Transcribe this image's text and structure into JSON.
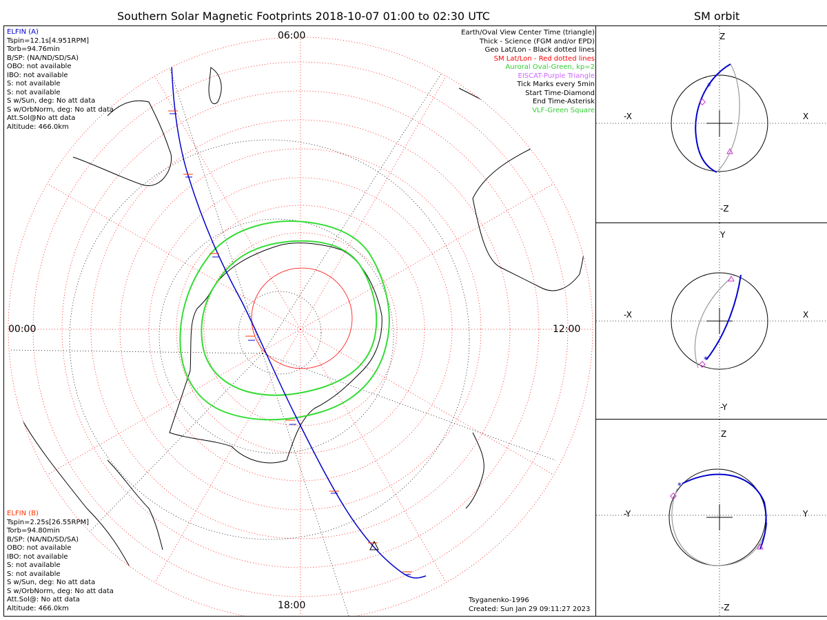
{
  "main": {
    "title": "Southern Solar Magnetic Footprints 2018-10-07 01:00 to 02:30 UTC",
    "clock_labels": {
      "top": "06:00",
      "left": "00:00",
      "right": "12:00",
      "bottom": "18:00"
    }
  },
  "orbit_panel": {
    "title": "SM orbit"
  },
  "sat_a": {
    "name": "ELFIN (A)",
    "color": "#0000cc",
    "lines": [
      "Tspin=12.1s[4.951RPM]",
      "Torb=94.76min",
      "B/SP: (NA/ND/SD/SA)",
      "OBO: not available",
      "IBO: not available",
      "S: not available",
      "S: not available",
      "S w/Sun, deg: No att data",
      "S w/OrbNorm, deg: No att data",
      "Att.Sol@No att data",
      "Altitude: 466.0km"
    ]
  },
  "sat_b": {
    "name": "ELFIN (B)",
    "color": "#ff3300",
    "lines": [
      "Tspin=2.25s[26.55RPM]",
      "Torb=94.80min",
      "B/SP: (NA/ND/SD/SA)",
      "OBO: not available",
      "IBO: not available",
      "S: not available",
      "S: not available",
      "S w/Sun, deg: No att data",
      "S w/OrbNorm, deg: No att data",
      "Att.Sol@: No att data",
      "Altitude: 466.0km"
    ]
  },
  "legend": [
    {
      "text": "Earth/Oval View Center Time (triangle)",
      "color": "#000000"
    },
    {
      "text": "Thick - Science (FGM and/or EPD)",
      "color": "#000000"
    },
    {
      "text": "Geo Lat/Lon - Black dotted lines",
      "color": "#000000"
    },
    {
      "text": "SM Lat/Lon - Red dotted lines",
      "color": "#ff0000"
    },
    {
      "text": "Auroral Oval-Green, kp=2",
      "color": "#33cc33"
    },
    {
      "text": "EISCAT-Purple Triangle",
      "color": "#cc66ff"
    },
    {
      "text": "Tick Marks every 5min",
      "color": "#000000"
    },
    {
      "text": "Start Time-Diamond",
      "color": "#000000"
    },
    {
      "text": "End Time-Asterisk",
      "color": "#000000"
    },
    {
      "text": "VLF-Green Square",
      "color": "#33cc33"
    }
  ],
  "footer": {
    "model": "Tsyganenko-1996",
    "created": "Created: Sun Jan 29 09:11:27 2023"
  },
  "orbit_views": [
    {
      "top": "Z",
      "bottom": "-Z",
      "left": "-X",
      "right": "X"
    },
    {
      "top": "Y",
      "bottom": "-Y",
      "left": "-X",
      "right": "X"
    },
    {
      "top": "Z",
      "bottom": "-Z",
      "left": "-Y",
      "right": "Y"
    }
  ],
  "colors": {
    "track": "#0000cc",
    "oval": "#33dd33",
    "sm_grid": "#ff0000",
    "geo_grid": "#000000",
    "eiscat": "#cc66ff"
  }
}
